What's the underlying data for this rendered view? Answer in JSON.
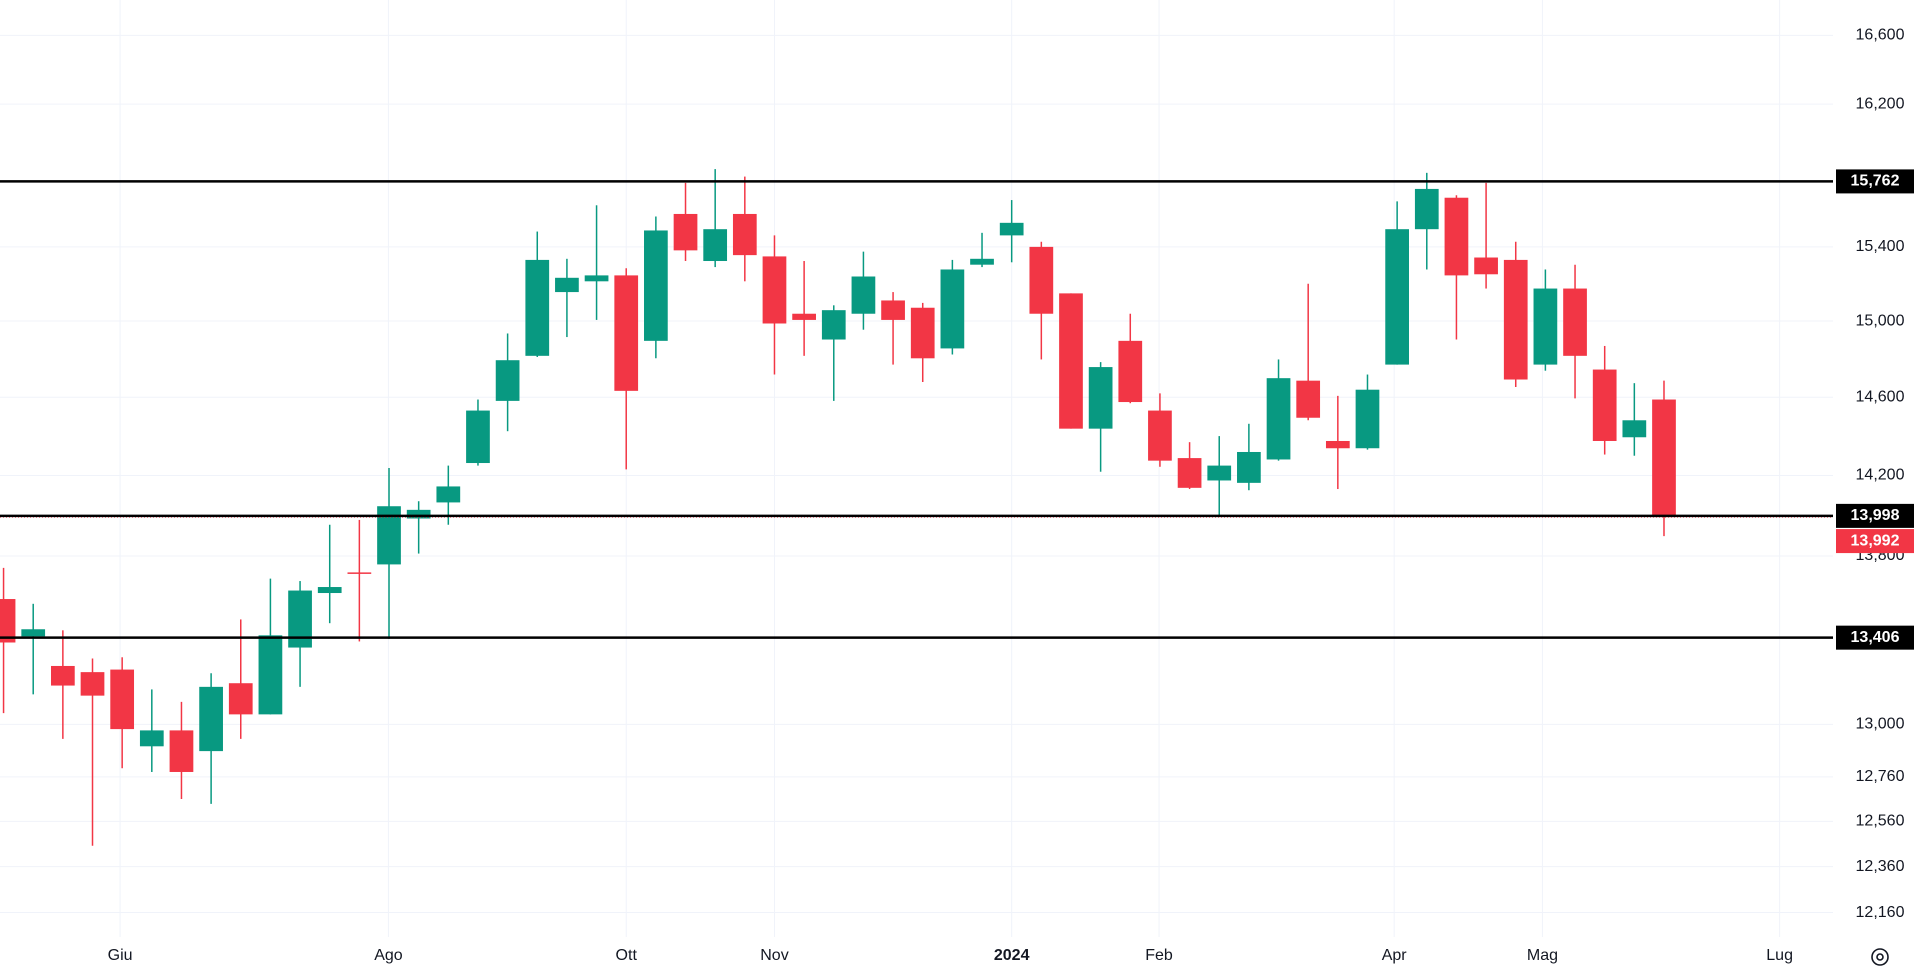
{
  "chart_data": {
    "type": "candlestick",
    "log_scale": true,
    "grid": true,
    "up_color": "#089981",
    "down_color": "#f23645",
    "open": [
      13591,
      13412,
      13272,
      13243,
      13255,
      12899,
      12972,
      12877,
      13191,
      13046,
      13359,
      13620,
      13720,
      13759,
      13985,
      14065,
      14263,
      14581,
      14816,
      15155,
      15213,
      15245,
      14895,
      15581,
      15323,
      15581,
      15348,
      15039,
      14902,
      15039,
      15110,
      15071,
      14855,
      15303,
      15463,
      15400,
      15148,
      14438,
      14895,
      14531,
      14288,
      14175,
      14163,
      14281,
      14686,
      14375,
      14338,
      14770,
      15497,
      15671,
      15342,
      15329,
      14770,
      15174,
      14744,
      14394,
      14588
    ],
    "high": [
      13742,
      13568,
      13441,
      13307,
      13313,
      13162,
      13104,
      13238,
      13493,
      13690,
      13678,
      13954,
      13978,
      14238,
      14071,
      14250,
      14588,
      14934,
      15484,
      15335,
      15629,
      15284,
      15567,
      15754,
      15831,
      15789,
      15463,
      15323,
      15084,
      15374,
      15155,
      15097,
      15329,
      15477,
      15658,
      15428,
      15148,
      14783,
      15039,
      14620,
      14369,
      14400,
      14463,
      14797,
      15200,
      14607,
      14718,
      15651,
      15810,
      15685,
      15754,
      15428,
      15277,
      15303,
      14868,
      14673,
      14686
    ],
    "low": [
      13052,
      13139,
      12933,
      12452,
      12799,
      12782,
      12660,
      12638,
      12933,
      13046,
      13174,
      13475,
      13388,
      13400,
      13812,
      13954,
      14250,
      14425,
      14810,
      14915,
      15006,
      14231,
      14803,
      15323,
      15290,
      15213,
      14718,
      14816,
      14581,
      14954,
      14770,
      14679,
      14823,
      15290,
      15316,
      14797,
      14438,
      14219,
      14569,
      14244,
      14132,
      13997,
      14126,
      14275,
      14481,
      14132,
      14331,
      14770,
      15277,
      14902,
      15174,
      14653,
      14738,
      14594,
      14306,
      14300,
      13898
    ],
    "close": [
      13383,
      13446,
      13180,
      13133,
      12978,
      12972,
      12782,
      13174,
      13046,
      13417,
      13632,
      13649,
      13715,
      14046,
      14028,
      14145,
      14531,
      14793,
      15329,
      15232,
      15245,
      14633,
      15490,
      15381,
      15497,
      15355,
      14987,
      15006,
      15058,
      15239,
      15006,
      14803,
      15277,
      15335,
      15532,
      15039,
      14438,
      14757,
      14575,
      14275,
      14138,
      14250,
      14319,
      14699,
      14494,
      14338,
      14639,
      15497,
      15720,
      15245,
      15251,
      14692,
      15174,
      14816,
      14375,
      14481,
      13992
    ],
    "xlim": [
      -0.12,
      61.7
    ],
    "ylim": [
      12055,
      16810
    ],
    "yticks": [
      {
        "value": 16600,
        "label": "16,600"
      },
      {
        "value": 16200,
        "label": "16,200"
      },
      {
        "value": 15400,
        "label": "15,400"
      },
      {
        "value": 15000,
        "label": "15,000"
      },
      {
        "value": 14600,
        "label": "14,600"
      },
      {
        "value": 14200,
        "label": "14,200"
      },
      {
        "value": 13800,
        "label": "13,800"
      },
      {
        "value": 13000,
        "label": "13,000"
      },
      {
        "value": 12760,
        "label": "12,760"
      },
      {
        "value": 12560,
        "label": "12,560"
      },
      {
        "value": 12360,
        "label": "12,360"
      },
      {
        "value": 12160,
        "label": "12,160"
      }
    ],
    "xticks": [
      {
        "value": 3.93,
        "label": "Giu"
      },
      {
        "value": 12.98,
        "label": "Ago"
      },
      {
        "value": 21.0,
        "label": "Ott"
      },
      {
        "value": 26.0,
        "label": "Nov"
      },
      {
        "value": 34.0,
        "label": "2024",
        "bold": true
      },
      {
        "value": 38.97,
        "label": "Feb"
      },
      {
        "value": 46.9,
        "label": "Apr"
      },
      {
        "value": 51.9,
        "label": "Mag"
      },
      {
        "value": 59.9,
        "label": "Lug"
      }
    ],
    "levels": [
      {
        "value": 15762,
        "label": "15,762"
      },
      {
        "value": 13998,
        "label": "13,998"
      },
      {
        "value": 13406,
        "label": "13,406"
      }
    ],
    "level_color": "#000000",
    "last_price": {
      "value": 13992,
      "label": "13,992"
    }
  }
}
